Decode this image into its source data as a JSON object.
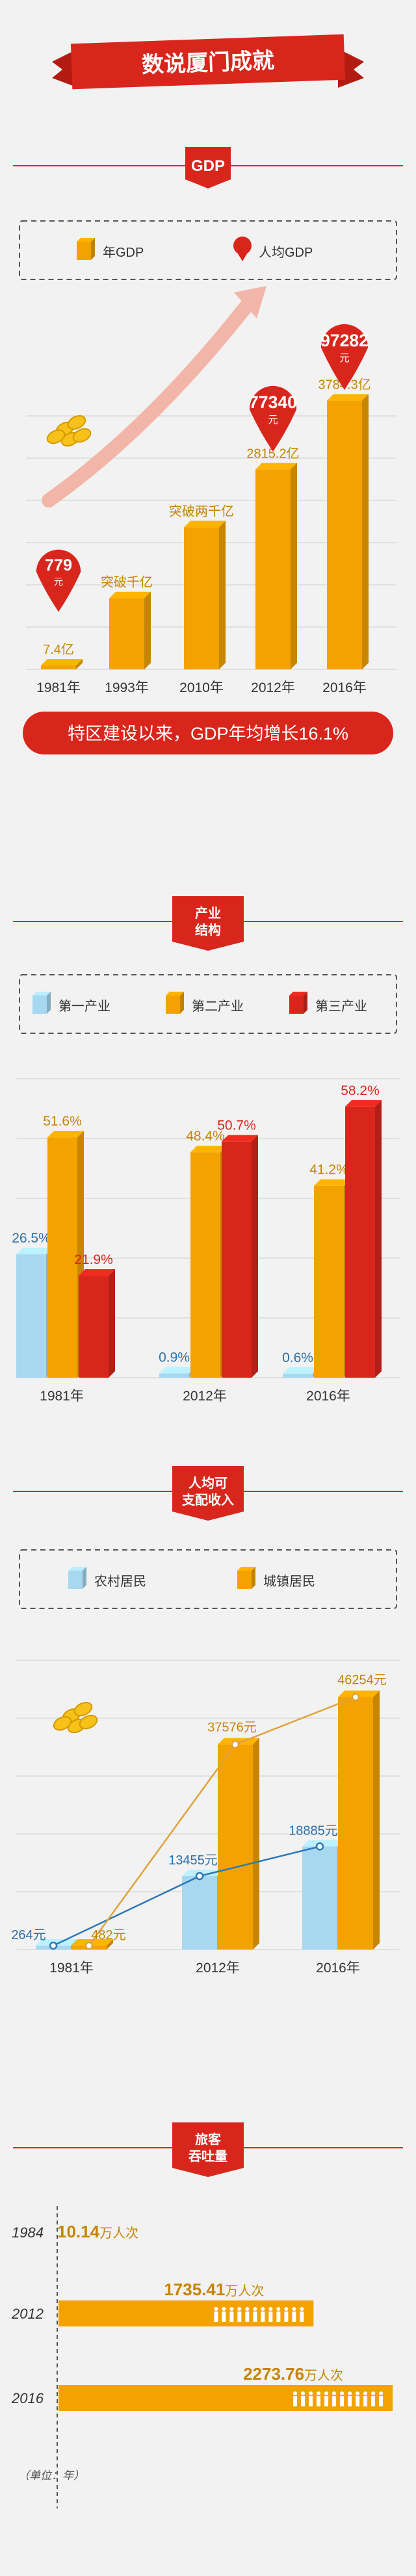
{
  "banner": {
    "title": "数说厦门成就"
  },
  "colors": {
    "red": "#d9261c",
    "orange": "#f3a200",
    "blue": "#a8d7f0",
    "darkred": "#b31b12",
    "text": "#333333",
    "blueText": "#2c6fa6",
    "orangeText": "#c68400"
  },
  "gdp": {
    "section_title": "GDP",
    "legend": {
      "annual": "年GDP",
      "per_capita": "人均GDP"
    },
    "summary": "特区建设以来，GDP年均增长16.1%"
  },
  "industry": {
    "section_title_line1": "产业",
    "section_title_line2": "结构",
    "legend": [
      "第一产业",
      "第二产业",
      "第三产业"
    ]
  },
  "income": {
    "section_title_line1": "人均可",
    "section_title_line2": "支配收入",
    "legend": [
      "农村居民",
      "城镇居民"
    ]
  },
  "passengers": {
    "section_title_line1": "旅客",
    "section_title_line2": "吞吐量",
    "unit_note": "（单位：年）",
    "unit": "万人次"
  },
  "chart_data": [
    {
      "type": "bar",
      "title": "GDP",
      "categories": [
        "1981年",
        "1993年",
        "2010年",
        "2012年",
        "2016年"
      ],
      "series": [
        {
          "name": "年GDP",
          "values": [
            7.4,
            null,
            null,
            2815.2,
            3784.3
          ],
          "unit": "亿"
        },
        {
          "name": "人均GDP",
          "values": [
            779,
            null,
            null,
            77340,
            97282
          ],
          "unit": "元"
        }
      ],
      "value_labels": [
        "7.4亿",
        "突破千亿",
        "突破两千亿",
        "2815.2亿",
        "3784.3亿"
      ],
      "per_capita_labels": [
        "779",
        "",
        "",
        "77340",
        "97282"
      ],
      "per_capita_unit": "元"
    },
    {
      "type": "bar",
      "title": "产业结构",
      "categories": [
        "1981年",
        "2012年",
        "2016年"
      ],
      "series": [
        {
          "name": "第一产业",
          "values": [
            26.5,
            0.9,
            0.6
          ]
        },
        {
          "name": "第二产业",
          "values": [
            51.6,
            48.4,
            41.2
          ]
        },
        {
          "name": "第三产业",
          "values": [
            21.9,
            50.7,
            58.2
          ]
        }
      ],
      "value_labels": [
        [
          "26.5%",
          "0.9%",
          "0.6%"
        ],
        [
          "51.6%",
          "48.4%",
          "41.2%"
        ],
        [
          "21.9%",
          "50.7%",
          "58.2%"
        ]
      ],
      "unit": "%"
    },
    {
      "type": "bar",
      "title": "人均可支配收入",
      "categories": [
        "1981年",
        "2012年",
        "2016年"
      ],
      "series": [
        {
          "name": "农村居民",
          "values": [
            264,
            13455,
            18885
          ]
        },
        {
          "name": "城镇居民",
          "values": [
            482,
            37576,
            46254
          ]
        }
      ],
      "value_labels": [
        [
          "264元",
          "13455元",
          "18885元"
        ],
        [
          "482元",
          "37576元",
          "46254元"
        ]
      ],
      "unit": "元"
    },
    {
      "type": "bar",
      "title": "旅客吞吐量",
      "categories": [
        "1984",
        "2012",
        "2016"
      ],
      "values": [
        10.14,
        1735.41,
        2273.76
      ],
      "value_labels": [
        "10.14",
        "1735.41",
        "2273.76"
      ],
      "unit": "万人次"
    }
  ]
}
